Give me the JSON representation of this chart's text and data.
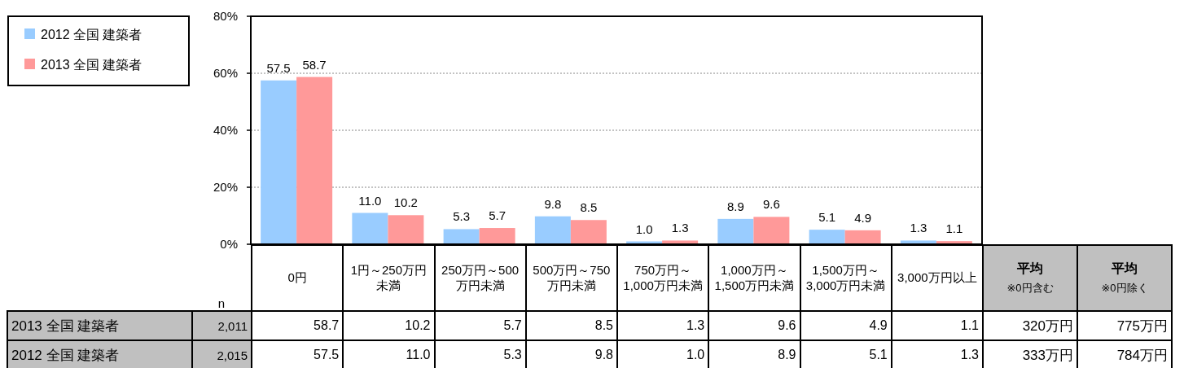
{
  "chart_data": {
    "type": "bar",
    "categories": [
      "0円",
      "1円～250万円未満",
      "250万円～500万円未満",
      "500万円～750万円未満",
      "750万円～1,000万円未満",
      "1,000万円～1,500万円未満",
      "1,500万円～3,000万円未満",
      "3,000万円以上"
    ],
    "series": [
      {
        "name": "2012 全国 建築者",
        "color": "#99ccff",
        "values": [
          57.5,
          11.0,
          5.3,
          9.8,
          1.0,
          8.9,
          5.1,
          1.3
        ],
        "value_labels": [
          "57.5",
          "11.0",
          "5.3",
          "9.8",
          "1.0",
          "8.9",
          "5.1",
          "1.3"
        ]
      },
      {
        "name": "2013 全国 建築者",
        "color": "#ff9999",
        "values": [
          58.7,
          10.2,
          5.7,
          8.5,
          1.3,
          9.6,
          4.9,
          1.1
        ],
        "value_labels": [
          "58.7",
          "10.2",
          "5.7",
          "8.5",
          "1.3",
          "9.6",
          "4.9",
          "1.1"
        ]
      }
    ],
    "ylim": [
      0,
      80
    ],
    "yticks": [
      {
        "value": 0,
        "label": "0%"
      },
      {
        "value": 20,
        "label": "20%"
      },
      {
        "value": 40,
        "label": "40%"
      },
      {
        "value": 60,
        "label": "60%"
      },
      {
        "value": 80,
        "label": "80%"
      }
    ],
    "grid": "y",
    "legend": "top left",
    "annotations": [
      "n",
      "2,011",
      "2,015",
      "平均",
      "※0円含む",
      "320万円",
      "333万円",
      "平均",
      "※0円除く",
      "775万円",
      "784万円"
    ]
  }
}
